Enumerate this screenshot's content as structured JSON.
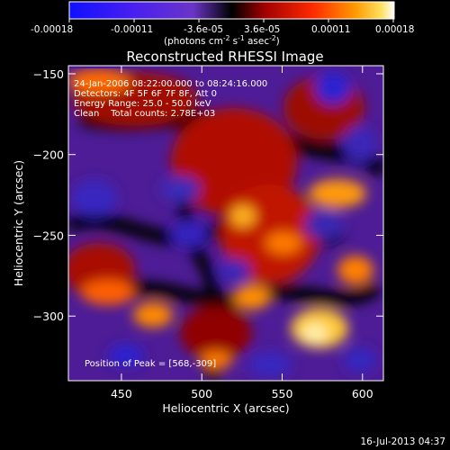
{
  "chart_data": {
    "type": "heatmap",
    "title": "Reconstructed RHESSI Image",
    "colorbar": {
      "ticks": [
        "-0.00018",
        "-0.00011",
        "-3.6e-05",
        "3.6e-05",
        "0.00011",
        "0.00018"
      ],
      "range": [
        -0.00018,
        0.00018
      ],
      "label_main": "(photons cm",
      "label_exp1": "-2",
      "label_mid": " s",
      "label_exp2": "-1",
      "label_tail": " asec",
      "label_exp3": "-2",
      "label_close": ")"
    },
    "xlabel": "Heliocentric X (arcsec)",
    "ylabel": "Heliocentric Y (arcsec)",
    "xlim": [
      417,
      613
    ],
    "ylim": [
      -340,
      -145
    ],
    "xticks": [
      450,
      500,
      550,
      600
    ],
    "yticks": [
      -150,
      -200,
      -250,
      -300
    ],
    "ytick_labels": [
      "−150",
      "−200",
      "−250",
      "−300"
    ],
    "peak": [
      568,
      -309
    ],
    "grid": false
  },
  "info": {
    "line1": "24-Jan-2006 08:22:00.000 to 08:24:16.000",
    "line2": "Detectors: 4F 5F 6F 7F 8F, Att 0",
    "line3": "Energy Range: 25.0 - 50.0 keV",
    "line4": "Clean    Total counts: 2.78E+03",
    "peak_text": "Position of Peak = [568,-309]"
  },
  "footer": {
    "timestamp": "16-Jul-2013 04:37"
  },
  "colors": {
    "background": "#000000",
    "text": "#ffffff"
  }
}
